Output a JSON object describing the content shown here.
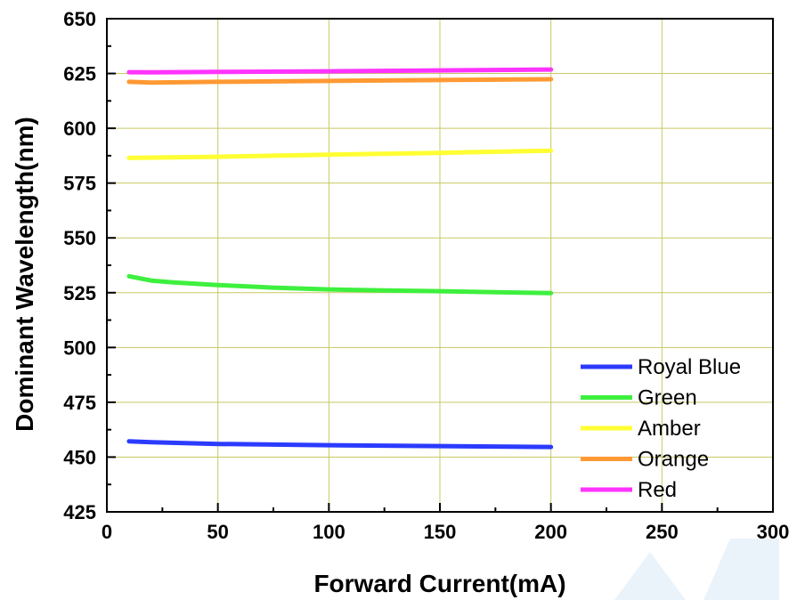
{
  "chart_data": {
    "type": "line",
    "title": "",
    "xlabel": "Forward Current(mA)",
    "ylabel": "Dominant Wavelength(nm)",
    "xlim": [
      0,
      300
    ],
    "ylim": [
      425,
      650
    ],
    "xticks": [
      0,
      50,
      100,
      150,
      200,
      250,
      300
    ],
    "yticks": [
      425,
      450,
      475,
      500,
      525,
      550,
      575,
      600,
      625,
      650
    ],
    "grid": true,
    "legend_position": "bottom-right",
    "series": [
      {
        "name": "Royal Blue",
        "color": "#2b3bff",
        "x": [
          10,
          20,
          50,
          100,
          150,
          200
        ],
        "y": [
          457.2,
          456.8,
          456.0,
          455.4,
          455.0,
          454.6
        ]
      },
      {
        "name": "Green",
        "color": "#3ef03e",
        "x": [
          10,
          20,
          30,
          50,
          75,
          100,
          125,
          150,
          175,
          200
        ],
        "y": [
          532.5,
          530.5,
          529.7,
          528.5,
          527.3,
          526.5,
          526.0,
          525.7,
          525.2,
          524.8
        ]
      },
      {
        "name": "Amber",
        "color": "#ffff33",
        "x": [
          10,
          50,
          100,
          150,
          200
        ],
        "y": [
          586.5,
          587.0,
          588.0,
          588.8,
          589.8
        ]
      },
      {
        "name": "Orange",
        "color": "#ff9933",
        "x": [
          10,
          20,
          50,
          100,
          150,
          200
        ],
        "y": [
          621.2,
          620.9,
          621.2,
          621.6,
          622.0,
          622.4
        ]
      },
      {
        "name": "Red",
        "color": "#ff33ff",
        "x": [
          10,
          20,
          50,
          100,
          150,
          200
        ],
        "y": [
          625.6,
          625.5,
          625.7,
          626.0,
          626.4,
          626.8
        ]
      }
    ]
  }
}
